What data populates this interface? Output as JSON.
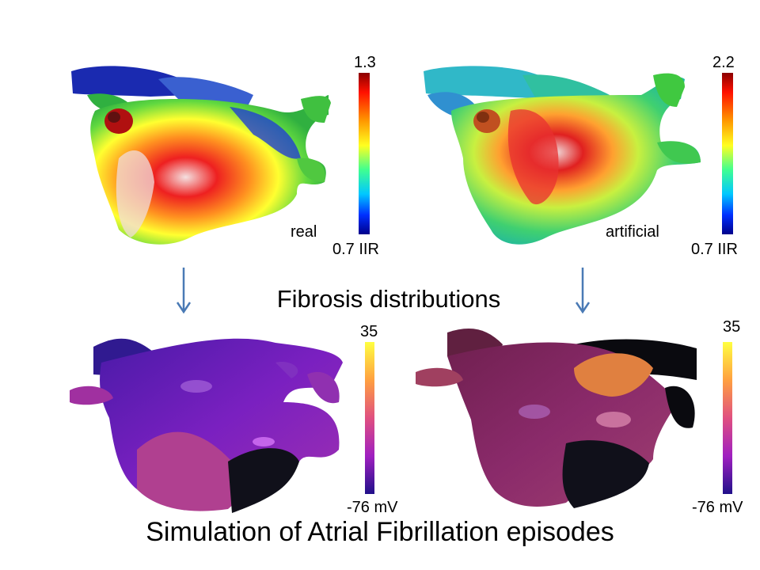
{
  "panels": {
    "top_left": {
      "label": "real",
      "cbar_max": "1.3",
      "cbar_min": "0.7 IIR"
    },
    "top_right": {
      "label": "artificial",
      "cbar_max": "2.2",
      "cbar_min": "0.7 IIR"
    },
    "bottom_left": {
      "cbar_max": "35",
      "cbar_min": "-76 mV"
    },
    "bottom_right": {
      "cbar_max": "35",
      "cbar_min": "-76 mV"
    }
  },
  "captions": {
    "middle": "Fibrosis distributions",
    "bottom": "Simulation of Atrial Fibrillation episodes"
  },
  "colors": {
    "arrow": "#4a7ab5",
    "jet_scale": [
      "#8b0000",
      "#ff2000",
      "#ffa000",
      "#ffff20",
      "#40ff90",
      "#00c0ff",
      "#0030ff",
      "#00008b"
    ],
    "voltage_scale": [
      "#ffff40",
      "#ffa040",
      "#e05080",
      "#a020c0",
      "#4010a0",
      "#200080"
    ]
  },
  "icons": {
    "arrow": "down-arrow-icon"
  }
}
